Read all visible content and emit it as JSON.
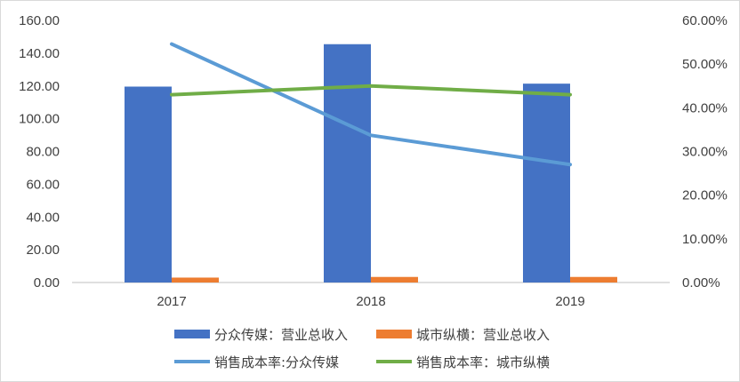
{
  "chart_data": {
    "type": "bar",
    "categories": [
      "2017",
      "2018",
      "2019"
    ],
    "left_axis": {
      "ylim": [
        0,
        160
      ],
      "ticks": [
        "0.00",
        "20.00",
        "40.00",
        "60.00",
        "80.00",
        "100.00",
        "120.00",
        "140.00",
        "160.00"
      ]
    },
    "right_axis": {
      "ylim": [
        0,
        0.6
      ],
      "ticks": [
        "0.00%",
        "10.00%",
        "20.00%",
        "30.00%",
        "40.00%",
        "50.00%",
        "60.00%"
      ]
    },
    "series": [
      {
        "name": "分众传媒：营业总收入",
        "kind": "bar",
        "axis": "left",
        "color": "#4472C4",
        "values": [
          119.6,
          145.5,
          121.4
        ]
      },
      {
        "name": "城市纵横：营业总收入",
        "kind": "bar",
        "axis": "left",
        "color": "#ED7D31",
        "values": [
          3.0,
          3.4,
          3.4
        ]
      },
      {
        "name": "销售成本率:分众传媒",
        "kind": "line",
        "axis": "right",
        "color": "#5B9BD5",
        "values": [
          0.546,
          0.337,
          0.27
        ]
      },
      {
        "name": "销售成本率：城市纵横",
        "kind": "line",
        "axis": "right",
        "color": "#70AD47",
        "values": [
          0.43,
          0.45,
          0.43
        ]
      }
    ],
    "grid": false,
    "legend_position": "bottom"
  }
}
